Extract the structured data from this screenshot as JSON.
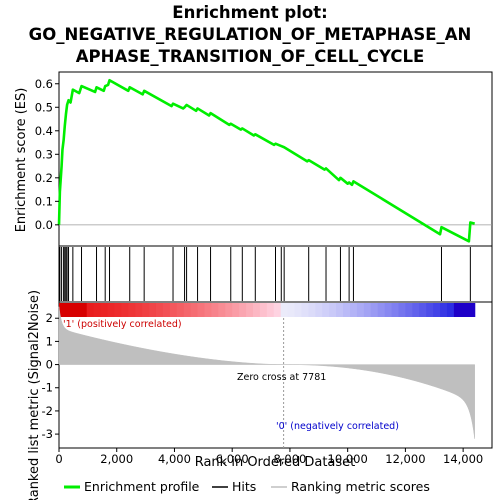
{
  "chart_data": {
    "type": "line",
    "title_lines": [
      "Enrichment plot:",
      "GO_NEGATIVE_REGULATION_OF_METAPHASE_AN",
      "APHASE_TRANSITION_OF_CELL_CYCLE"
    ],
    "ylabel_top": "Enrichment score (ES)",
    "ylabel_bottom": "Ranked list metric (Signal2Noise)",
    "xlabel": "Rank in Ordered Dataset",
    "x_ticks": [
      {
        "value": 0,
        "label": "0"
      },
      {
        "value": 2000,
        "label": "2,000"
      },
      {
        "value": 4000,
        "label": "4,000"
      },
      {
        "value": 6000,
        "label": "6,000"
      },
      {
        "value": 8000,
        "label": "8,000"
      },
      {
        "value": 10000,
        "label": "10,000"
      },
      {
        "value": 12000,
        "label": "12,000"
      },
      {
        "value": 14000,
        "label": "14,000"
      }
    ],
    "xlim": [
      0,
      15000
    ],
    "es_ylim": [
      -0.09,
      0.65
    ],
    "es_ticks": [
      {
        "value": 0.0,
        "label": "0.0"
      },
      {
        "value": 0.1,
        "label": "0.1"
      },
      {
        "value": 0.2,
        "label": "0.2"
      },
      {
        "value": 0.3,
        "label": "0.3"
      },
      {
        "value": 0.4,
        "label": "0.4"
      },
      {
        "value": 0.5,
        "label": "0.5"
      },
      {
        "value": 0.6,
        "label": "0.6"
      }
    ],
    "metric_ylim": [
      -3.6,
      2.7
    ],
    "metric_ticks": [
      {
        "value": 2,
        "label": "2"
      },
      {
        "value": 1,
        "label": "1"
      },
      {
        "value": 0,
        "label": "0"
      },
      {
        "value": -1,
        "label": "-1"
      },
      {
        "value": -2,
        "label": "-2"
      },
      {
        "value": -3,
        "label": "-3"
      }
    ],
    "n_genes": 14400,
    "hits": [
      30,
      90,
      160,
      200,
      240,
      280,
      330,
      480,
      780,
      1300,
      1600,
      1750,
      2450,
      2950,
      3950,
      4350,
      4420,
      4800,
      5250,
      5950,
      6350,
      6800,
      7500,
      7700,
      7800,
      8650,
      9250,
      9750,
      10050,
      10200,
      13250,
      14250
    ],
    "es_points": [
      [
        0,
        0.0
      ],
      [
        30,
        0.14
      ],
      [
        90,
        0.25
      ],
      [
        120,
        0.32
      ],
      [
        160,
        0.36
      ],
      [
        200,
        0.42
      ],
      [
        240,
        0.47
      ],
      [
        280,
        0.51
      ],
      [
        330,
        0.53
      ],
      [
        400,
        0.52
      ],
      [
        480,
        0.575
      ],
      [
        700,
        0.56
      ],
      [
        780,
        0.59
      ],
      [
        1250,
        0.565
      ],
      [
        1300,
        0.585
      ],
      [
        1550,
        0.57
      ],
      [
        1600,
        0.59
      ],
      [
        1700,
        0.595
      ],
      [
        1750,
        0.615
      ],
      [
        2400,
        0.57
      ],
      [
        2450,
        0.585
      ],
      [
        2900,
        0.555
      ],
      [
        2950,
        0.57
      ],
      [
        3900,
        0.505
      ],
      [
        3950,
        0.515
      ],
      [
        4300,
        0.495
      ],
      [
        4350,
        0.5
      ],
      [
        4420,
        0.51
      ],
      [
        4750,
        0.485
      ],
      [
        4800,
        0.495
      ],
      [
        5200,
        0.465
      ],
      [
        5250,
        0.475
      ],
      [
        5900,
        0.425
      ],
      [
        5950,
        0.43
      ],
      [
        6300,
        0.405
      ],
      [
        6350,
        0.41
      ],
      [
        6750,
        0.38
      ],
      [
        6800,
        0.385
      ],
      [
        7450,
        0.34
      ],
      [
        7500,
        0.345
      ],
      [
        7700,
        0.335
      ],
      [
        7800,
        0.33
      ],
      [
        8600,
        0.27
      ],
      [
        8650,
        0.275
      ],
      [
        9200,
        0.235
      ],
      [
        9250,
        0.24
      ],
      [
        9700,
        0.19
      ],
      [
        9750,
        0.2
      ],
      [
        10000,
        0.175
      ],
      [
        10050,
        0.18
      ],
      [
        10150,
        0.17
      ],
      [
        10200,
        0.185
      ],
      [
        13200,
        -0.04
      ],
      [
        13250,
        -0.01
      ],
      [
        14200,
        -0.07
      ],
      [
        14250,
        0.01
      ],
      [
        14400,
        0.005
      ]
    ],
    "series": [
      {
        "name": "Enrichment profile",
        "color": "#00ee00"
      },
      {
        "name": "Hits",
        "color": "#000000"
      },
      {
        "name": "Ranking metric scores",
        "color": "#bfbfbf"
      }
    ],
    "annotations": {
      "positive": "'1' (positively correlated)",
      "negative": "'0' (negatively correlated)",
      "zero_cross": "Zero cross at 7781",
      "zero_cross_rank": 7781
    }
  }
}
